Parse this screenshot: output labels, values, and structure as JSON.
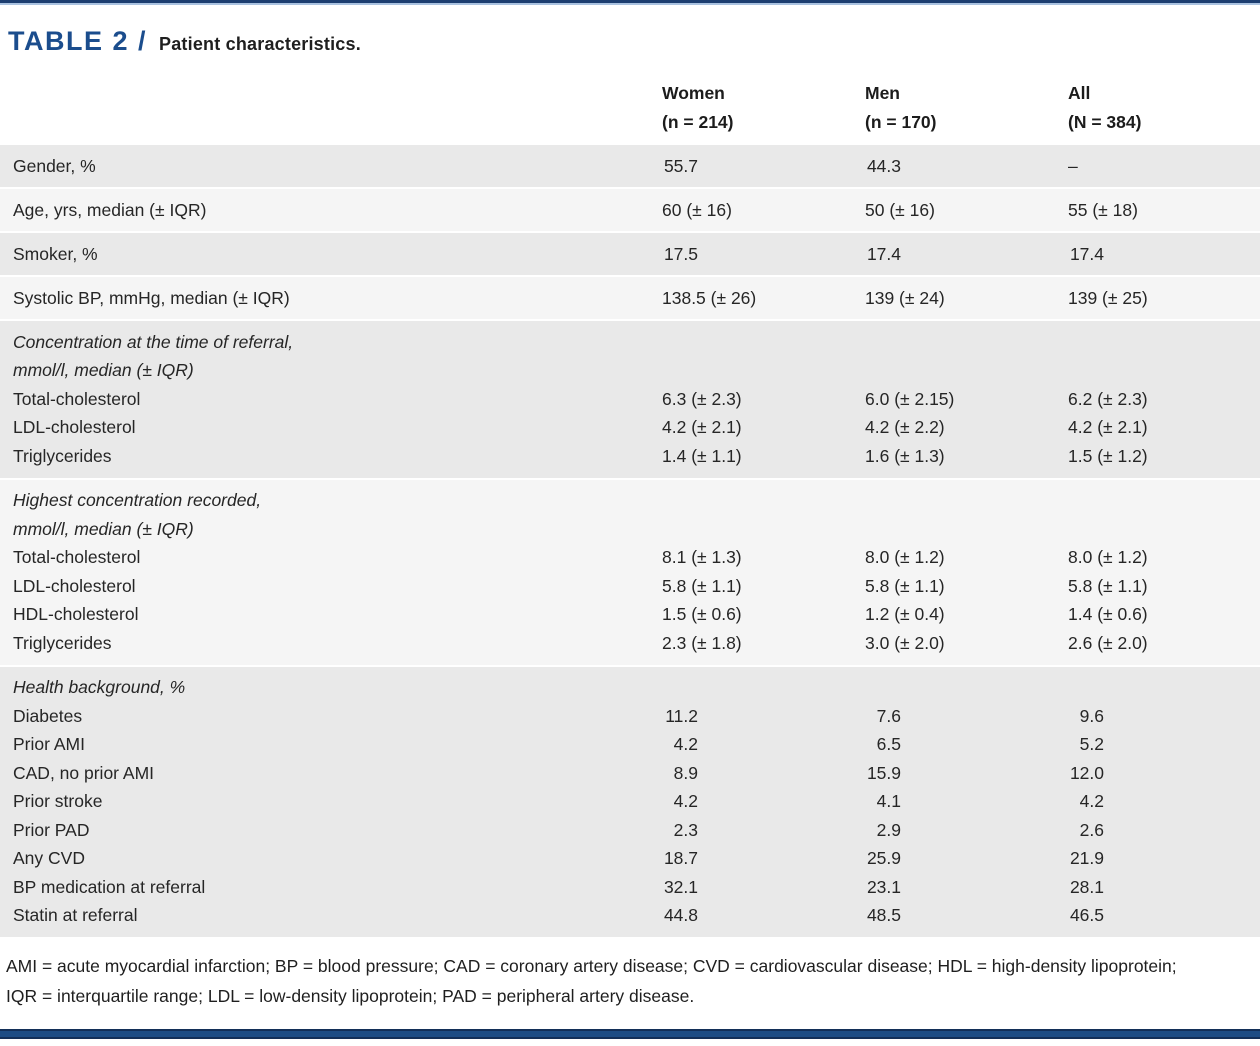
{
  "header": {
    "label": "TABLE 2 /",
    "title": "Patient characteristics."
  },
  "columns": [
    {
      "name": "Women",
      "n": "(n = 214)"
    },
    {
      "name": "Men",
      "n": "(n = 170)"
    },
    {
      "name": "All",
      "n": "(N = 384)"
    }
  ],
  "rows": {
    "gender": {
      "label": "Gender, %",
      "women": "55.7",
      "men": "44.3",
      "all": "–"
    },
    "age": {
      "label": "Age, yrs, median (± IQR)",
      "women": "60 (± 16)",
      "men": "50 (± 16)",
      "all": "55 (± 18)"
    },
    "smoker": {
      "label": "Smoker, %",
      "women": "17.5",
      "men": "17.4",
      "all": "17.4"
    },
    "systolic": {
      "label": "Systolic BP, mmHg, median (± IQR)",
      "women": "138.5 (± 26)",
      "men": "139 (± 24)",
      "all": "139 (± 25)"
    }
  },
  "sections": {
    "referral": {
      "header_line1": "Concentration at the time of referral,",
      "header_line2": "mmol/l, median (± IQR)",
      "rows": [
        {
          "label": "Total-cholesterol",
          "women": "6.3 (± 2.3)",
          "men": "6.0 (± 2.15)",
          "all": "6.2 (± 2.3)"
        },
        {
          "label": "LDL-cholesterol",
          "women": "4.2 (± 2.1)",
          "men": "4.2 (± 2.2)",
          "all": "4.2 (± 2.1)"
        },
        {
          "label": "Triglycerides",
          "women": "1.4 (± 1.1)",
          "men": "1.6 (± 1.3)",
          "all": "1.5 (± 1.2)"
        }
      ]
    },
    "highest": {
      "header_line1": "Highest concentration recorded,",
      "header_line2": "mmol/l, median (± IQR)",
      "rows": [
        {
          "label": "Total-cholesterol",
          "women": "8.1 (± 1.3)",
          "men": "8.0 (± 1.2)",
          "all": "8.0 (± 1.2)"
        },
        {
          "label": "LDL-cholesterol",
          "women": "5.8 (± 1.1)",
          "men": "5.8 (± 1.1)",
          "all": "5.8 (± 1.1)"
        },
        {
          "label": "HDL-cholesterol",
          "women": "1.5 (± 0.6)",
          "men": "1.2 (± 0.4)",
          "all": "1.4 (± 0.6)"
        },
        {
          "label": "Triglycerides",
          "women": "2.3 (± 1.8)",
          "men": "3.0 (± 2.0)",
          "all": "2.6 (± 2.0)"
        }
      ]
    },
    "health": {
      "header_line1": "Health background, %",
      "rows": [
        {
          "label": "Diabetes",
          "women": "11.2",
          "men": "7.6",
          "all": "9.6"
        },
        {
          "label": "Prior AMI",
          "women": "4.2",
          "men": "6.5",
          "all": "5.2"
        },
        {
          "label": "CAD, no prior AMI",
          "women": "8.9",
          "men": "15.9",
          "all": "12.0"
        },
        {
          "label": "Prior stroke",
          "women": "4.2",
          "men": "4.1",
          "all": "4.2"
        },
        {
          "label": "Prior PAD",
          "women": "2.3",
          "men": "2.9",
          "all": "2.6"
        },
        {
          "label": "Any CVD",
          "women": "18.7",
          "men": "25.9",
          "all": "21.9"
        },
        {
          "label": "BP medication at referral",
          "women": "32.1",
          "men": "23.1",
          "all": "28.1"
        },
        {
          "label": "Statin at referral",
          "women": "44.8",
          "men": "48.5",
          "all": "46.5"
        }
      ]
    }
  },
  "footnote": {
    "line1": "AMI = acute myocardial infarction; BP = blood pressure; CAD = coronary artery disease; CVD = cardiovascular disease; HDL = high-density lipoprotein;",
    "line2": "IQR = interquartile range; LDL = low-density lipoprotein; PAD = peripheral artery disease."
  },
  "colors": {
    "accent_blue": "#1b4d8d",
    "navy_bar": "#1d4c84",
    "row_shade_dark": "#e9e9e9",
    "row_shade_light": "#f5f5f5"
  }
}
